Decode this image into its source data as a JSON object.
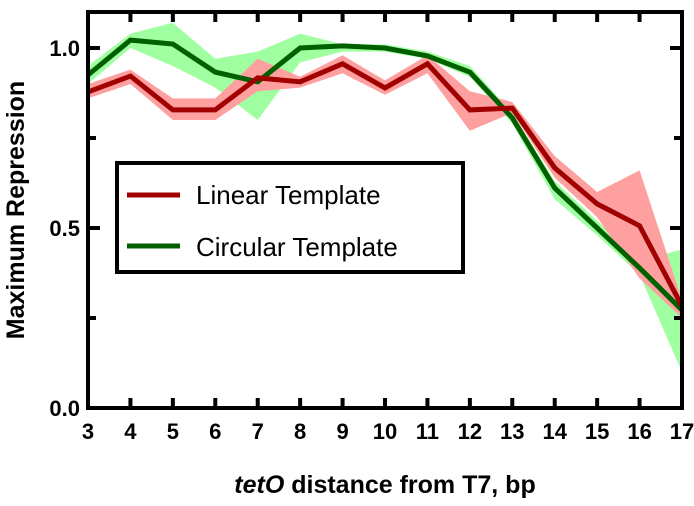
{
  "chart_data": {
    "type": "line",
    "title": "",
    "xlabel_italic": "tetO",
    "xlabel_rest": " distance from T7, bp",
    "ylabel": "Maximum Repression",
    "xlim": [
      3,
      17
    ],
    "ylim": [
      0,
      1.1
    ],
    "x": [
      3,
      4,
      5,
      6,
      7,
      8,
      9,
      10,
      11,
      12,
      13,
      14,
      15,
      16,
      17
    ],
    "xticks": [
      "3",
      "4",
      "5",
      "6",
      "7",
      "8",
      "9",
      "10",
      "11",
      "12",
      "13",
      "14",
      "15",
      "16",
      "17"
    ],
    "yticks": [
      {
        "v": 0,
        "label": "0.0"
      },
      {
        "v": 0.5,
        "label": "0.5"
      },
      {
        "v": 1.0,
        "label": "1.0"
      }
    ],
    "yminor": [
      0.25,
      0.75
    ],
    "legend_position": "center-left",
    "series": [
      {
        "name": "Linear Template",
        "color": "#a00000",
        "band_color": "#ffa0a0",
        "values": [
          0.878,
          0.922,
          0.828,
          0.828,
          0.917,
          0.906,
          0.956,
          0.889,
          0.956,
          0.828,
          0.833,
          0.667,
          0.567,
          0.506,
          0.283
        ],
        "lower": [
          0.86,
          0.9,
          0.8,
          0.8,
          0.88,
          0.89,
          0.93,
          0.87,
          0.93,
          0.77,
          0.82,
          0.64,
          0.53,
          0.36,
          0.25
        ],
        "upper": [
          0.9,
          0.94,
          0.86,
          0.86,
          0.97,
          0.92,
          0.98,
          0.91,
          0.98,
          0.88,
          0.85,
          0.7,
          0.6,
          0.66,
          0.3
        ]
      },
      {
        "name": "Circular Template",
        "color": "#006000",
        "band_color": "#a0ffa0",
        "values": [
          0.925,
          1.022,
          1.011,
          0.933,
          0.906,
          1.0,
          1.006,
          1.0,
          0.978,
          0.933,
          0.806,
          0.611,
          0.5,
          0.389,
          0.272
        ],
        "lower": [
          0.9,
          1.0,
          0.95,
          0.89,
          0.8,
          0.96,
          0.99,
          0.99,
          0.97,
          0.92,
          0.79,
          0.58,
          0.48,
          0.37,
          0.1
        ],
        "upper": [
          0.95,
          1.04,
          1.07,
          0.97,
          0.99,
          1.04,
          1.01,
          1.01,
          0.99,
          0.95,
          0.82,
          0.63,
          0.52,
          0.41,
          0.44
        ]
      }
    ]
  }
}
